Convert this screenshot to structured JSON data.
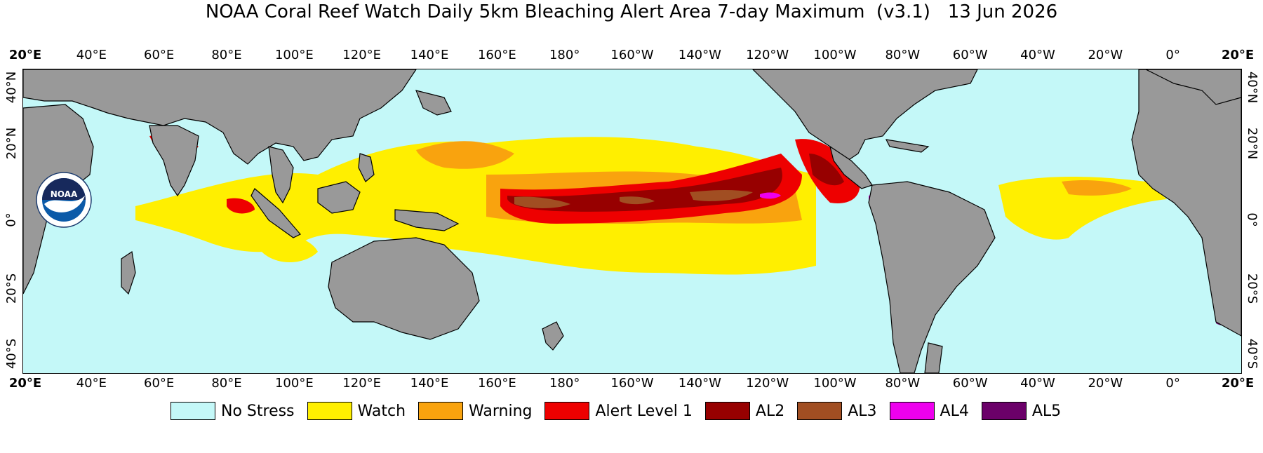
{
  "title": "NOAA Coral Reef Watch Daily 5km Bleaching Alert Area 7-day Maximum  (v3.1)   13 Jun 2026",
  "lon_ticks": [
    "20°E",
    "40°E",
    "60°E",
    "80°E",
    "100°E",
    "120°E",
    "140°E",
    "160°E",
    "180°",
    "160°W",
    "140°W",
    "120°W",
    "100°W",
    "80°W",
    "60°W",
    "40°W",
    "20°W",
    "0°",
    "20°E"
  ],
  "lat_ticks": [
    "40°N",
    "20°N",
    "0°",
    "20°S",
    "40°S"
  ],
  "legend": [
    {
      "label": "No Stress",
      "color": "#c4f8f8"
    },
    {
      "label": "Watch",
      "color": "#ffef00"
    },
    {
      "label": "Warning",
      "color": "#f9a30e"
    },
    {
      "label": "Alert Level 1",
      "color": "#ee0000"
    },
    {
      "label": "AL2",
      "color": "#970000"
    },
    {
      "label": "AL3",
      "color": "#a14e22"
    },
    {
      "label": "AL4",
      "color": "#ee00ee"
    },
    {
      "label": "AL5",
      "color": "#6b0069"
    }
  ],
  "colors": {
    "land": "#999999",
    "ocean": "#c4f8f8",
    "coast": "#000000"
  },
  "logo": {
    "name": "noaa-logo",
    "text": "NOAA"
  }
}
